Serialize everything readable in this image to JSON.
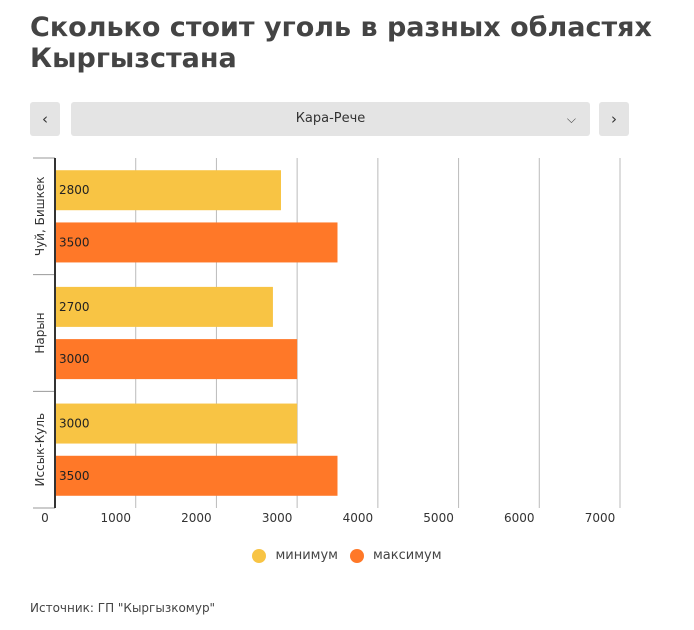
{
  "title": "Сколько стоит уголь в разных областях Кыргызстана",
  "nav": {
    "prev_icon": "chevron-left-icon",
    "prev_glyph": "‹",
    "next_icon": "chevron-right-icon",
    "next_glyph": "›"
  },
  "selector": {
    "value": "Кара-Рече",
    "icon": "chevron-down-icon",
    "glyph": "⌵"
  },
  "legend": [
    {
      "label": "минимум",
      "color": "#f8c444"
    },
    {
      "label": "максимум",
      "color": "#ff7828"
    }
  ],
  "source": "Источник: ГП \"Кыргызкомур\"",
  "chart_data": {
    "type": "bar",
    "orientation": "horizontal",
    "categories": [
      "Чуй, Бишкек",
      "Нарын",
      "Иссык-Куль"
    ],
    "series": [
      {
        "name": "минимум",
        "color": "#f8c444",
        "values": [
          2800,
          2700,
          3000
        ]
      },
      {
        "name": "максимум",
        "color": "#ff7828",
        "values": [
          3500,
          3000,
          3500
        ]
      }
    ],
    "xlim": [
      0,
      7000
    ],
    "xticks": [
      0,
      1000,
      2000,
      3000,
      4000,
      5000,
      6000,
      7000
    ],
    "grid": true,
    "legend_position": "bottom",
    "data_labels": true
  }
}
